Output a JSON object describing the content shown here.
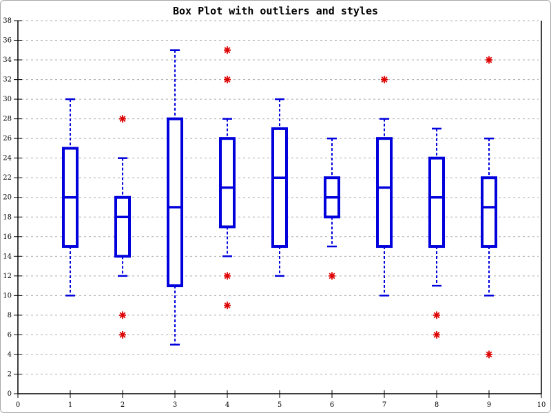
{
  "chart_data": {
    "type": "boxplot",
    "title": "Box Plot with outliers and styles",
    "xlabel": "",
    "ylabel": "",
    "xlim": [
      0,
      10
    ],
    "ylim": [
      0,
      38
    ],
    "xticks": [
      0,
      1,
      2,
      3,
      4,
      5,
      6,
      7,
      8,
      9,
      10
    ],
    "yticks": [
      0,
      2,
      4,
      6,
      8,
      10,
      12,
      14,
      16,
      18,
      20,
      22,
      24,
      26,
      28,
      30,
      32,
      34,
      36,
      38
    ],
    "grid": "horizontal-dashed",
    "legend": "none",
    "boxes": [
      {
        "x": 1,
        "whisker_low": 10,
        "q1": 15,
        "median": 20,
        "q3": 25,
        "whisker_high": 30,
        "outliers": []
      },
      {
        "x": 2,
        "whisker_low": 12,
        "q1": 14,
        "median": 18,
        "q3": 20,
        "whisker_high": 24,
        "outliers": [
          28,
          8,
          6
        ]
      },
      {
        "x": 3,
        "whisker_low": 5,
        "q1": 11,
        "median": 19,
        "q3": 28,
        "whisker_high": 35,
        "outliers": []
      },
      {
        "x": 4,
        "whisker_low": 14,
        "q1": 17,
        "median": 21,
        "q3": 26,
        "whisker_high": 28,
        "outliers": [
          35,
          32,
          12,
          9
        ]
      },
      {
        "x": 5,
        "whisker_low": 12,
        "q1": 15,
        "median": 22,
        "q3": 27,
        "whisker_high": 30,
        "outliers": []
      },
      {
        "x": 6,
        "whisker_low": 15,
        "q1": 18,
        "median": 20,
        "q3": 22,
        "whisker_high": 26,
        "outliers": [
          12
        ]
      },
      {
        "x": 7,
        "whisker_low": 10,
        "q1": 15,
        "median": 21,
        "q3": 26,
        "whisker_high": 28,
        "outliers": [
          32
        ]
      },
      {
        "x": 8,
        "whisker_low": 11,
        "q1": 15,
        "median": 20,
        "q3": 24,
        "whisker_high": 27,
        "outliers": [
          8,
          6
        ]
      },
      {
        "x": 9,
        "whisker_low": 10,
        "q1": 15,
        "median": 19,
        "q3": 22,
        "whisker_high": 26,
        "outliers": [
          34,
          4
        ]
      }
    ],
    "colors": {
      "box": "#0000DD",
      "outlier": "#DD0000",
      "grid": "#ABABAB",
      "axis": "#000000",
      "background": "#FFFFFF"
    }
  }
}
